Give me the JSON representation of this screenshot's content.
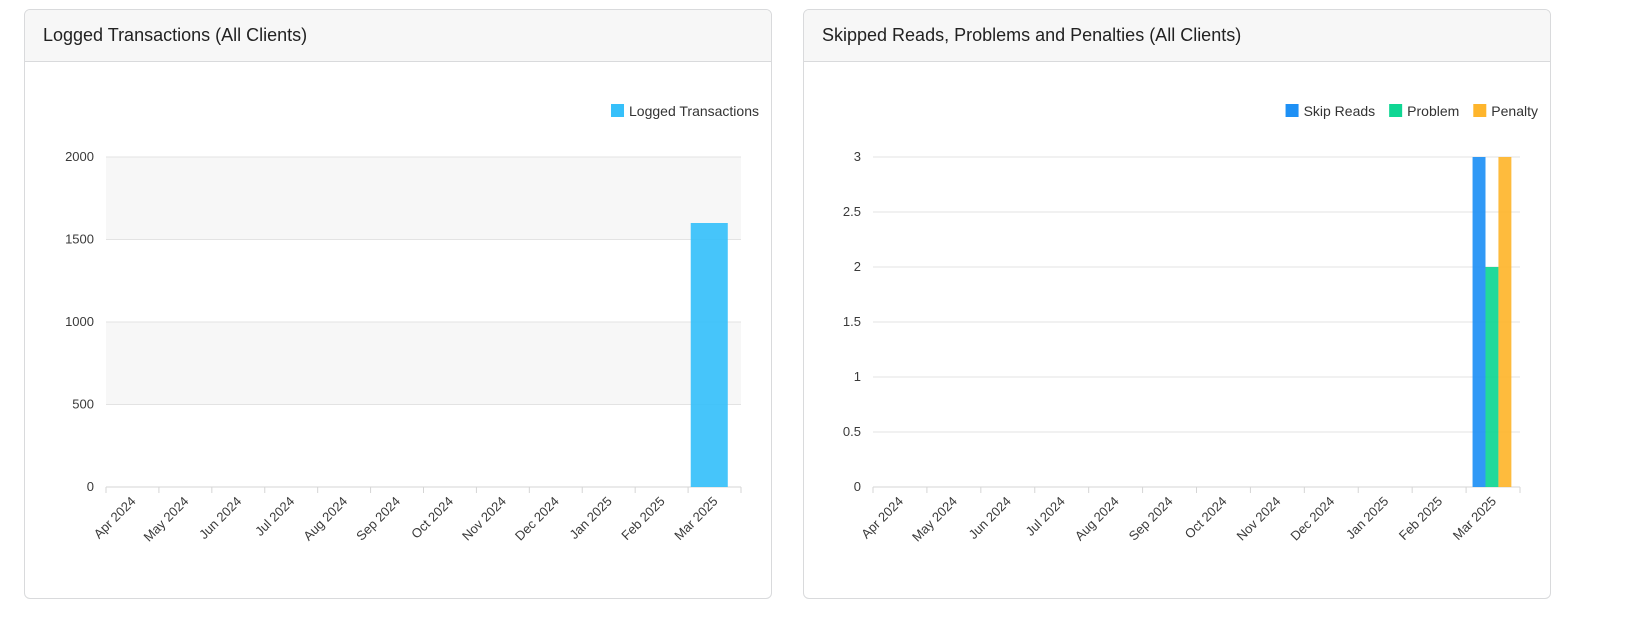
{
  "charts": [
    {
      "id": "left",
      "title": "Logged Transactions (All Clients)",
      "chart_data": {
        "type": "bar",
        "title": "Logged Transactions (All Clients)",
        "categories": [
          "Apr 2024",
          "May 2024",
          "Jun 2024",
          "Jul 2024",
          "Aug 2024",
          "Sep 2024",
          "Oct 2024",
          "Nov 2024",
          "Dec 2024",
          "Jan 2025",
          "Feb 2025",
          "Mar 2025"
        ],
        "series": [
          {
            "name": "Logged Transactions",
            "color": "#36c0fa",
            "values": [
              0,
              0,
              0,
              0,
              0,
              0,
              0,
              0,
              0,
              0,
              0,
              1600
            ]
          }
        ],
        "yticks": [
          0,
          500,
          1000,
          1500,
          2000
        ],
        "ylim": [
          0,
          2000
        ],
        "legend": "top-right",
        "grid": true,
        "striped_bands": true
      }
    },
    {
      "id": "right",
      "title": "Skipped Reads, Problems and Penalties (All Clients)",
      "chart_data": {
        "type": "bar",
        "title": "Skipped Reads, Problems and Penalties (All Clients)",
        "categories": [
          "Apr 2024",
          "May 2024",
          "Jun 2024",
          "Jul 2024",
          "Aug 2024",
          "Sep 2024",
          "Oct 2024",
          "Nov 2024",
          "Dec 2024",
          "Jan 2025",
          "Feb 2025",
          "Mar 2025"
        ],
        "series": [
          {
            "name": "Skip Reads",
            "color": "#1e90f5",
            "values": [
              0,
              0,
              0,
              0,
              0,
              0,
              0,
              0,
              0,
              0,
              0,
              3
            ]
          },
          {
            "name": "Problem",
            "color": "#0fd693",
            "values": [
              0,
              0,
              0,
              0,
              0,
              0,
              0,
              0,
              0,
              0,
              0,
              2
            ]
          },
          {
            "name": "Penalty",
            "color": "#feb52c",
            "values": [
              0,
              0,
              0,
              0,
              0,
              0,
              0,
              0,
              0,
              0,
              0,
              3
            ]
          }
        ],
        "yticks": [
          "0",
          "0.5",
          "1",
          "1.5",
          "2",
          "2.5",
          "3"
        ],
        "ylim": [
          0,
          3
        ],
        "legend": "top-right",
        "grid": true,
        "striped_bands": false
      }
    }
  ]
}
